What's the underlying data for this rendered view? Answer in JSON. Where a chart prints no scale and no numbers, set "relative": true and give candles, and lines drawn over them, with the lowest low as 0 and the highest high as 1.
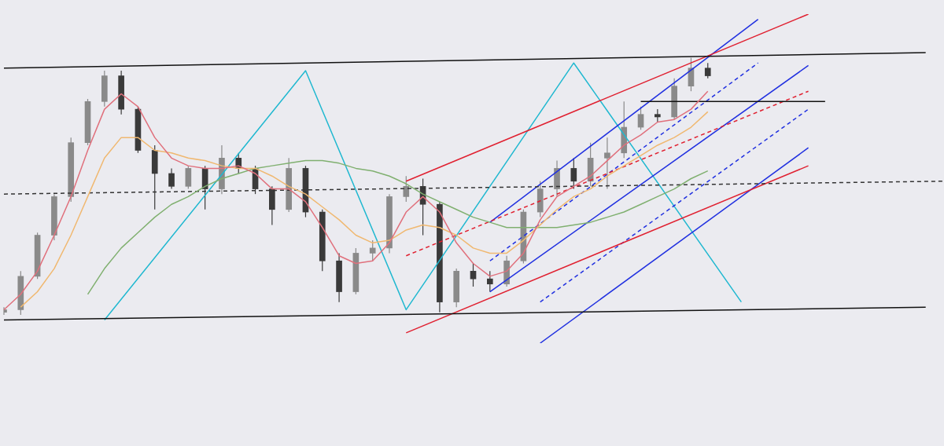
{
  "chart_data": {
    "type": "candlestick",
    "relative": true,
    "legend": false,
    "grid": false,
    "marker": "none",
    "tick_labels": false,
    "categories": [
      null,
      null,
      null,
      null,
      null,
      null,
      null,
      null,
      null,
      null,
      null,
      null,
      null,
      null,
      null,
      null,
      null,
      null,
      null,
      null,
      null,
      null,
      null,
      null,
      null,
      null,
      null,
      null,
      null,
      null,
      null,
      null,
      null,
      null,
      null,
      null,
      null,
      null,
      null,
      null,
      null,
      null,
      null,
      null,
      null,
      null,
      null,
      null,
      null,
      null,
      null,
      null,
      null,
      null,
      null,
      null,
      null
    ],
    "colors": [
      "#8a8a8a",
      "#8a8a8a",
      "#8a8a8a",
      "#8a8a8a",
      "#8a8a8a",
      "#8a8a8a",
      "#8a8a8a",
      "#3a3a3a",
      "#3a3a3a",
      "#3a3a3a",
      "#3a3a3a",
      "#8a8a8a",
      "#3a3a3a",
      "#8a8a8a",
      "#3a3a3a",
      "#3a3a3a",
      "#3a3a3a",
      "#8a8a8a",
      "#3a3a3a",
      "#3a3a3a",
      "#3a3a3a",
      "#8a8a8a",
      "#8a8a8a",
      "#8a8a8a",
      "#8a8a8a",
      "#3a3a3a",
      "#3a3a3a",
      "#8a8a8a",
      "#3a3a3a",
      "#3a3a3a",
      "#8a8a8a",
      "#8a8a8a",
      "#8a8a8a",
      "#8a8a8a",
      "#3a3a3a",
      "#8a8a8a",
      "#8a8a8a",
      "#8a8a8a",
      "#8a8a8a",
      "#3a3a3a",
      "#8a8a8a",
      "#8a8a8a",
      "#3a3a3a",
      null,
      null,
      null,
      null,
      null,
      null,
      null,
      null,
      null,
      null,
      null,
      null,
      null,
      null
    ],
    "ohlc": [
      [
        0.01,
        0.03,
        0,
        0.02
      ],
      [
        0.02,
        0.17,
        0,
        0.15
      ],
      [
        0.15,
        0.32,
        0.14,
        0.31
      ],
      [
        0.31,
        0.47,
        0.29,
        0.46
      ],
      [
        0.46,
        0.69,
        0.44,
        0.67
      ],
      [
        0.67,
        0.84,
        0.66,
        0.83
      ],
      [
        0.83,
        0.95,
        0.81,
        0.93
      ],
      [
        0.93,
        0.95,
        0.78,
        0.8
      ],
      [
        0.8,
        0.81,
        0.63,
        0.64
      ],
      [
        0.64,
        0.66,
        0.41,
        0.55
      ],
      [
        0.55,
        0.57,
        0.49,
        0.5
      ],
      [
        0.5,
        0.58,
        0.49,
        0.57
      ],
      [
        0.57,
        0.58,
        0.41,
        0.49
      ],
      [
        0.49,
        0.66,
        0.47,
        0.61
      ],
      [
        0.61,
        0.63,
        0.55,
        0.57
      ],
      [
        0.57,
        0.58,
        0.47,
        0.49
      ],
      [
        0.49,
        0.5,
        0.35,
        0.41
      ],
      [
        0.41,
        0.61,
        0.4,
        0.57
      ],
      [
        0.57,
        0.58,
        0.38,
        0.4
      ],
      [
        0.4,
        0.41,
        0.17,
        0.21
      ],
      [
        0.21,
        0.24,
        0.05,
        0.09
      ],
      [
        0.09,
        0.26,
        0.08,
        0.24
      ],
      [
        0.24,
        0.29,
        0.21,
        0.26
      ],
      [
        0.26,
        0.47,
        0.24,
        0.46
      ],
      [
        0.46,
        0.54,
        0.44,
        0.5
      ],
      [
        0.5,
        0.53,
        0.31,
        0.43
      ],
      [
        0.43,
        0.44,
        0.01,
        0.05
      ],
      [
        0.05,
        0.18,
        0.03,
        0.17
      ],
      [
        0.17,
        0.2,
        0.11,
        0.14
      ],
      [
        0.14,
        0.17,
        0.09,
        0.12
      ],
      [
        0.12,
        0.23,
        0.11,
        0.21
      ],
      [
        0.21,
        0.41,
        0.2,
        0.4
      ],
      [
        0.4,
        0.52,
        0.38,
        0.49
      ],
      [
        0.49,
        0.6,
        0.46,
        0.57
      ],
      [
        0.57,
        0.61,
        0.49,
        0.52
      ],
      [
        0.52,
        0.67,
        0.5,
        0.61
      ],
      [
        0.61,
        0.69,
        0.49,
        0.63
      ],
      [
        0.63,
        0.83,
        0.61,
        0.73
      ],
      [
        0.73,
        0.81,
        0.72,
        0.78
      ],
      [
        0.78,
        0.8,
        0.75,
        0.77
      ],
      [
        0.77,
        0.92,
        0.76,
        0.89
      ],
      [
        0.89,
        1,
        0.87,
        0.96
      ],
      [
        0.96,
        0.98,
        0.92,
        0.93
      ],
      null,
      null,
      null,
      null,
      null,
      null,
      null,
      null,
      null,
      null,
      null,
      null,
      null,
      null
    ],
    "series": [
      {
        "type": "line",
        "color": "#e0707c",
        "values": [
          0.02,
          0.08,
          0.17,
          0.31,
          0.46,
          0.64,
          0.8,
          0.86,
          0.81,
          0.69,
          0.61,
          0.58,
          0.57,
          0.57,
          0.58,
          0.55,
          0.49,
          0.49,
          0.44,
          0.34,
          0.23,
          0.2,
          0.21,
          0.28,
          0.4,
          0.46,
          0.4,
          0.28,
          0.2,
          0.15,
          0.17,
          0.24,
          0.37,
          0.46,
          0.5,
          0.54,
          0.6,
          0.66,
          0.7,
          0.75,
          0.76,
          0.8,
          0.87,
          null,
          null,
          null,
          null,
          null,
          null,
          null,
          null,
          null,
          null,
          null,
          null,
          null,
          null
        ]
      },
      {
        "type": "line",
        "color": "#f0b870",
        "values": [
          null,
          0.03,
          0.09,
          0.18,
          0.31,
          0.46,
          0.61,
          0.69,
          0.69,
          0.64,
          0.63,
          0.61,
          0.6,
          0.58,
          0.57,
          0.57,
          0.54,
          0.5,
          0.47,
          0.42,
          0.37,
          0.31,
          0.28,
          0.29,
          0.33,
          0.35,
          0.34,
          0.31,
          0.26,
          0.24,
          0.24,
          0.29,
          0.35,
          0.41,
          0.46,
          0.49,
          0.54,
          0.58,
          0.62,
          0.66,
          0.69,
          0.73,
          0.79,
          null,
          null,
          null,
          null,
          null,
          null,
          null,
          null,
          null,
          null,
          null,
          null,
          null,
          null
        ]
      },
      {
        "type": "line",
        "color": "#80b070",
        "values": [
          null,
          null,
          null,
          null,
          null,
          0.08,
          0.18,
          0.26,
          0.32,
          0.38,
          0.43,
          0.46,
          0.5,
          0.53,
          0.55,
          0.57,
          0.58,
          0.59,
          0.6,
          0.6,
          0.59,
          0.57,
          0.56,
          0.54,
          0.51,
          0.47,
          0.44,
          0.41,
          0.38,
          0.36,
          0.34,
          0.34,
          0.34,
          0.34,
          0.35,
          0.36,
          0.38,
          0.4,
          0.43,
          0.46,
          0.49,
          0.53,
          0.56,
          null,
          null,
          null,
          null,
          null,
          null,
          null,
          null,
          null,
          null,
          null,
          null,
          null,
          null
        ]
      },
      {
        "type": "line",
        "color": "#111111",
        "values": [
          0.96,
          null,
          null,
          null,
          null,
          null,
          null,
          null,
          null,
          null,
          null,
          null,
          null,
          null,
          null,
          null,
          null,
          null,
          null,
          null,
          null,
          null,
          null,
          null,
          null,
          null,
          null,
          null,
          null,
          null,
          null,
          null,
          null,
          null,
          null,
          null,
          null,
          null,
          null,
          null,
          null,
          null,
          null,
          null,
          null,
          null,
          null,
          null,
          null,
          null,
          null,
          null,
          null,
          null,
          null,
          1.02,
          null
        ]
      },
      {
        "type": "line",
        "color": "#111111",
        "values": [
          -0.02,
          null,
          null,
          null,
          null,
          null,
          null,
          null,
          null,
          null,
          null,
          null,
          null,
          null,
          null,
          null,
          null,
          null,
          null,
          null,
          null,
          null,
          null,
          null,
          null,
          null,
          null,
          null,
          null,
          null,
          null,
          null,
          null,
          null,
          null,
          null,
          null,
          null,
          null,
          null,
          null,
          null,
          null,
          null,
          null,
          null,
          null,
          null,
          null,
          null,
          null,
          null,
          null,
          null,
          null,
          0.03,
          null
        ]
      },
      {
        "type": "line",
        "color": "#111111",
        "values": [
          null,
          null,
          null,
          null,
          null,
          null,
          null,
          null,
          null,
          null,
          null,
          null,
          null,
          null,
          null,
          null,
          null,
          null,
          null,
          null,
          null,
          null,
          null,
          null,
          null,
          null,
          null,
          null,
          null,
          null,
          null,
          null,
          null,
          null,
          null,
          null,
          null,
          null,
          0.83,
          null,
          null,
          null,
          null,
          null,
          null,
          null,
          null,
          null,
          null,
          0.83,
          null,
          null,
          null,
          null,
          null,
          null,
          null
        ]
      },
      {
        "type": "line",
        "color": "#333333",
        "line_style": "dashed",
        "values": [
          0.47,
          null,
          null,
          null,
          null,
          null,
          null,
          null,
          null,
          null,
          null,
          null,
          null,
          null,
          null,
          null,
          null,
          null,
          null,
          null,
          null,
          null,
          null,
          null,
          null,
          null,
          null,
          null,
          null,
          null,
          null,
          null,
          null,
          null,
          null,
          null,
          null,
          null,
          null,
          null,
          null,
          null,
          null,
          null,
          null,
          null,
          null,
          null,
          null,
          null,
          null,
          null,
          null,
          null,
          null,
          null,
          0.52
        ]
      },
      {
        "type": "line",
        "color": "#e02030",
        "values": [
          null,
          null,
          null,
          null,
          null,
          null,
          null,
          null,
          null,
          null,
          null,
          null,
          null,
          null,
          null,
          null,
          null,
          null,
          null,
          null,
          null,
          null,
          null,
          null,
          0.52,
          null,
          null,
          null,
          null,
          null,
          null,
          null,
          null,
          null,
          null,
          null,
          null,
          null,
          null,
          null,
          null,
          null,
          null,
          null,
          null,
          null,
          null,
          null,
          1.17,
          null,
          null,
          null,
          null,
          null,
          null,
          null,
          null
        ]
      },
      {
        "type": "line",
        "color": "#e02030",
        "values": [
          null,
          null,
          null,
          null,
          null,
          null,
          null,
          null,
          null,
          null,
          null,
          null,
          null,
          null,
          null,
          null,
          null,
          null,
          null,
          null,
          null,
          null,
          null,
          null,
          -0.07,
          null,
          null,
          null,
          null,
          null,
          null,
          null,
          null,
          null,
          null,
          null,
          null,
          null,
          null,
          null,
          null,
          null,
          null,
          null,
          null,
          null,
          null,
          null,
          0.58,
          null,
          null,
          null,
          null,
          null,
          null,
          null,
          null
        ]
      },
      {
        "type": "line",
        "color": "#e02030",
        "line_style": "dashed",
        "values": [
          null,
          null,
          null,
          null,
          null,
          null,
          null,
          null,
          null,
          null,
          null,
          null,
          null,
          null,
          null,
          null,
          null,
          null,
          null,
          null,
          null,
          null,
          null,
          null,
          0.23,
          null,
          null,
          null,
          null,
          null,
          null,
          null,
          null,
          null,
          null,
          null,
          null,
          null,
          null,
          null,
          null,
          null,
          null,
          null,
          null,
          null,
          null,
          null,
          0.87,
          null,
          null,
          null,
          null,
          null,
          null,
          null,
          null
        ]
      },
      {
        "type": "line",
        "color": "#2030e0",
        "values": [
          null,
          null,
          null,
          null,
          null,
          null,
          null,
          null,
          null,
          null,
          null,
          null,
          null,
          null,
          null,
          null,
          null,
          null,
          null,
          null,
          null,
          null,
          null,
          null,
          null,
          null,
          null,
          null,
          null,
          0.36,
          null,
          null,
          null,
          null,
          null,
          null,
          null,
          null,
          null,
          null,
          null,
          null,
          null,
          null,
          null,
          1.15,
          null,
          null,
          null,
          null,
          null,
          null,
          null,
          null,
          null,
          null,
          null
        ]
      },
      {
        "type": "line",
        "color": "#2030e0",
        "line_style": "dashed",
        "values": [
          null,
          null,
          null,
          null,
          null,
          null,
          null,
          null,
          null,
          null,
          null,
          null,
          null,
          null,
          null,
          null,
          null,
          null,
          null,
          null,
          null,
          null,
          null,
          null,
          null,
          null,
          null,
          null,
          null,
          0.21,
          null,
          null,
          null,
          null,
          null,
          null,
          null,
          null,
          null,
          null,
          null,
          null,
          null,
          null,
          null,
          0.98,
          null,
          null,
          null,
          null,
          null,
          null,
          null,
          null,
          null,
          null,
          null
        ]
      },
      {
        "type": "line",
        "color": "#2030e0",
        "values": [
          null,
          null,
          null,
          null,
          null,
          null,
          null,
          null,
          null,
          null,
          null,
          null,
          null,
          null,
          null,
          null,
          null,
          null,
          null,
          null,
          null,
          null,
          null,
          null,
          null,
          null,
          null,
          null,
          null,
          0.09,
          null,
          null,
          null,
          null,
          null,
          null,
          null,
          null,
          null,
          null,
          null,
          null,
          null,
          null,
          null,
          null,
          null,
          null,
          0.97,
          null,
          null,
          null,
          null,
          null,
          null,
          null,
          null
        ]
      },
      {
        "type": "line",
        "color": "#2030e0",
        "line_style": "dashed",
        "values": [
          null,
          null,
          null,
          null,
          null,
          null,
          null,
          null,
          null,
          null,
          null,
          null,
          null,
          null,
          null,
          null,
          null,
          null,
          null,
          null,
          null,
          null,
          null,
          null,
          null,
          null,
          null,
          null,
          null,
          null,
          null,
          null,
          0.05,
          null,
          null,
          null,
          null,
          null,
          null,
          null,
          null,
          null,
          null,
          null,
          null,
          null,
          null,
          null,
          0.8,
          null,
          null,
          null,
          null,
          null,
          null,
          null,
          null
        ]
      },
      {
        "type": "line",
        "color": "#2030e0",
        "values": [
          null,
          null,
          null,
          null,
          null,
          null,
          null,
          null,
          null,
          null,
          null,
          null,
          null,
          null,
          null,
          null,
          null,
          null,
          null,
          null,
          null,
          null,
          null,
          null,
          null,
          null,
          null,
          null,
          null,
          null,
          null,
          null,
          -0.11,
          null,
          null,
          null,
          null,
          null,
          null,
          null,
          null,
          null,
          null,
          null,
          null,
          null,
          null,
          null,
          0.65,
          null,
          null,
          null,
          null,
          null,
          null,
          null,
          null
        ]
      },
      {
        "type": "line",
        "color": "#20b8d0",
        "values": [
          null,
          null,
          null,
          null,
          null,
          null,
          -0.02,
          null,
          null,
          null,
          null,
          null,
          null,
          null,
          null,
          null,
          null,
          null,
          0.95,
          null,
          null,
          null,
          null,
          null,
          0.02,
          null,
          null,
          null,
          null,
          null,
          null,
          null,
          null,
          null,
          0.98,
          null,
          null,
          null,
          null,
          null,
          null,
          null,
          null,
          null,
          0.05,
          null,
          null,
          null,
          null,
          null,
          null,
          null,
          null,
          null,
          null,
          null,
          null
        ]
      }
    ]
  }
}
